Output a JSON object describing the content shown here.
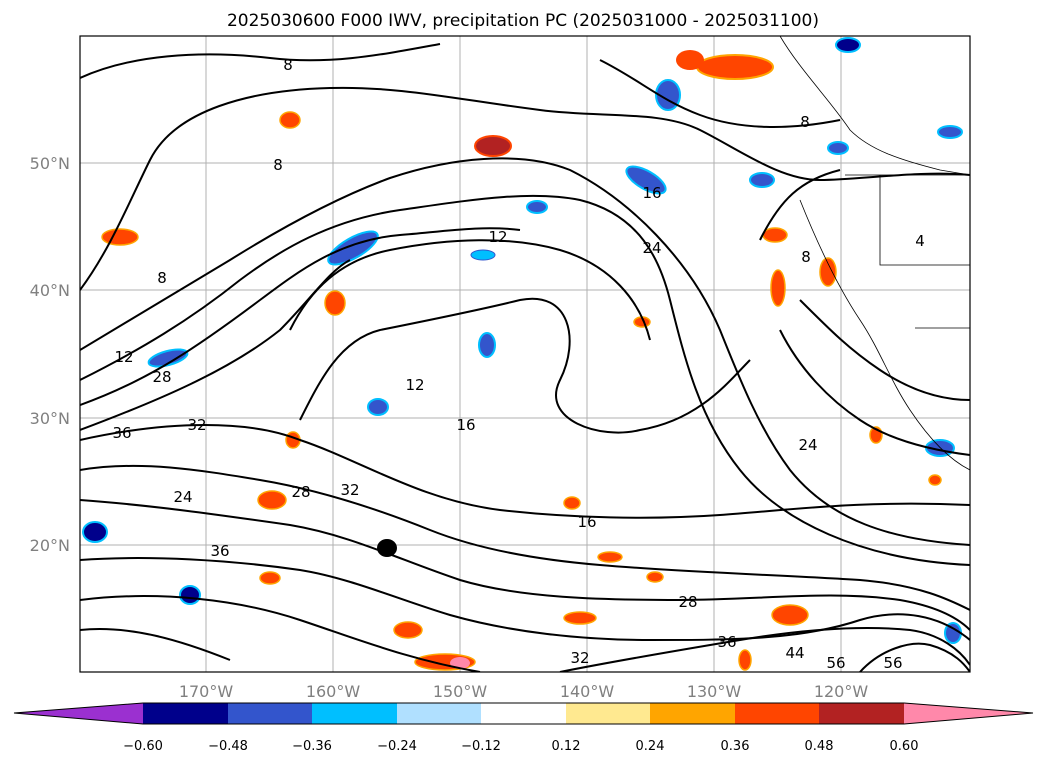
{
  "title": "2025030600 F000 IWV, precipitation PC (2025031000 - 2025031100)",
  "lat_labels": [
    "50°N",
    "40°N",
    "30°N",
    "20°N"
  ],
  "lon_labels": [
    "170°W",
    "160°W",
    "150°W",
    "140°W",
    "130°W",
    "120°W"
  ],
  "colorbar": {
    "ticks": [
      "−0.60",
      "−0.48",
      "−0.36",
      "−0.24",
      "−0.12",
      "0.12",
      "0.24",
      "0.36",
      "0.48",
      "0.60"
    ],
    "colors": [
      "#9b30d0",
      "#00008b",
      "#3355cc",
      "#00bfff",
      "#b0e0ff",
      "#ffffff",
      "#ffe990",
      "#ffa500",
      "#ff4500",
      "#b22222",
      "#ff88aa"
    ]
  },
  "contour_labels": [
    {
      "text": "8"
    },
    {
      "text": "8"
    },
    {
      "text": "8"
    },
    {
      "text": "8"
    },
    {
      "text": "8"
    },
    {
      "text": "12"
    },
    {
      "text": "12"
    },
    {
      "text": "12"
    },
    {
      "text": "16"
    },
    {
      "text": "16"
    },
    {
      "text": "16"
    },
    {
      "text": "24"
    },
    {
      "text": "24"
    },
    {
      "text": "24"
    },
    {
      "text": "28"
    },
    {
      "text": "28"
    },
    {
      "text": "28"
    },
    {
      "text": "32"
    },
    {
      "text": "32"
    },
    {
      "text": "32"
    },
    {
      "text": "36"
    },
    {
      "text": "36"
    },
    {
      "text": "36"
    },
    {
      "text": "44"
    },
    {
      "text": "56"
    },
    {
      "text": "56"
    },
    {
      "text": "4"
    }
  ]
}
